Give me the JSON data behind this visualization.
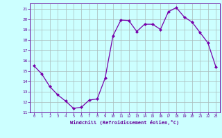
{
  "x": [
    0,
    1,
    2,
    3,
    4,
    5,
    6,
    7,
    8,
    9,
    10,
    11,
    12,
    13,
    14,
    15,
    16,
    17,
    18,
    19,
    20,
    21,
    22,
    23
  ],
  "y": [
    15.5,
    14.7,
    13.5,
    12.7,
    12.1,
    11.4,
    11.5,
    12.2,
    12.3,
    14.3,
    18.4,
    19.9,
    19.85,
    18.8,
    19.5,
    19.5,
    19.0,
    20.7,
    21.1,
    20.2,
    19.7,
    18.7,
    17.7,
    15.4
  ],
  "line_color": "#7700aa",
  "marker_color": "#7700aa",
  "bg_color": "#ccffff",
  "grid_color": "#aabbbb",
  "xlabel": "Windchill (Refroidissement éolien,°C)",
  "xlim": [
    -0.5,
    23.5
  ],
  "ylim": [
    11,
    21.5
  ],
  "yticks": [
    11,
    12,
    13,
    14,
    15,
    16,
    17,
    18,
    19,
    20,
    21
  ],
  "xticks": [
    0,
    1,
    2,
    3,
    4,
    5,
    6,
    7,
    8,
    9,
    10,
    11,
    12,
    13,
    14,
    15,
    16,
    17,
    18,
    19,
    20,
    21,
    22,
    23
  ]
}
